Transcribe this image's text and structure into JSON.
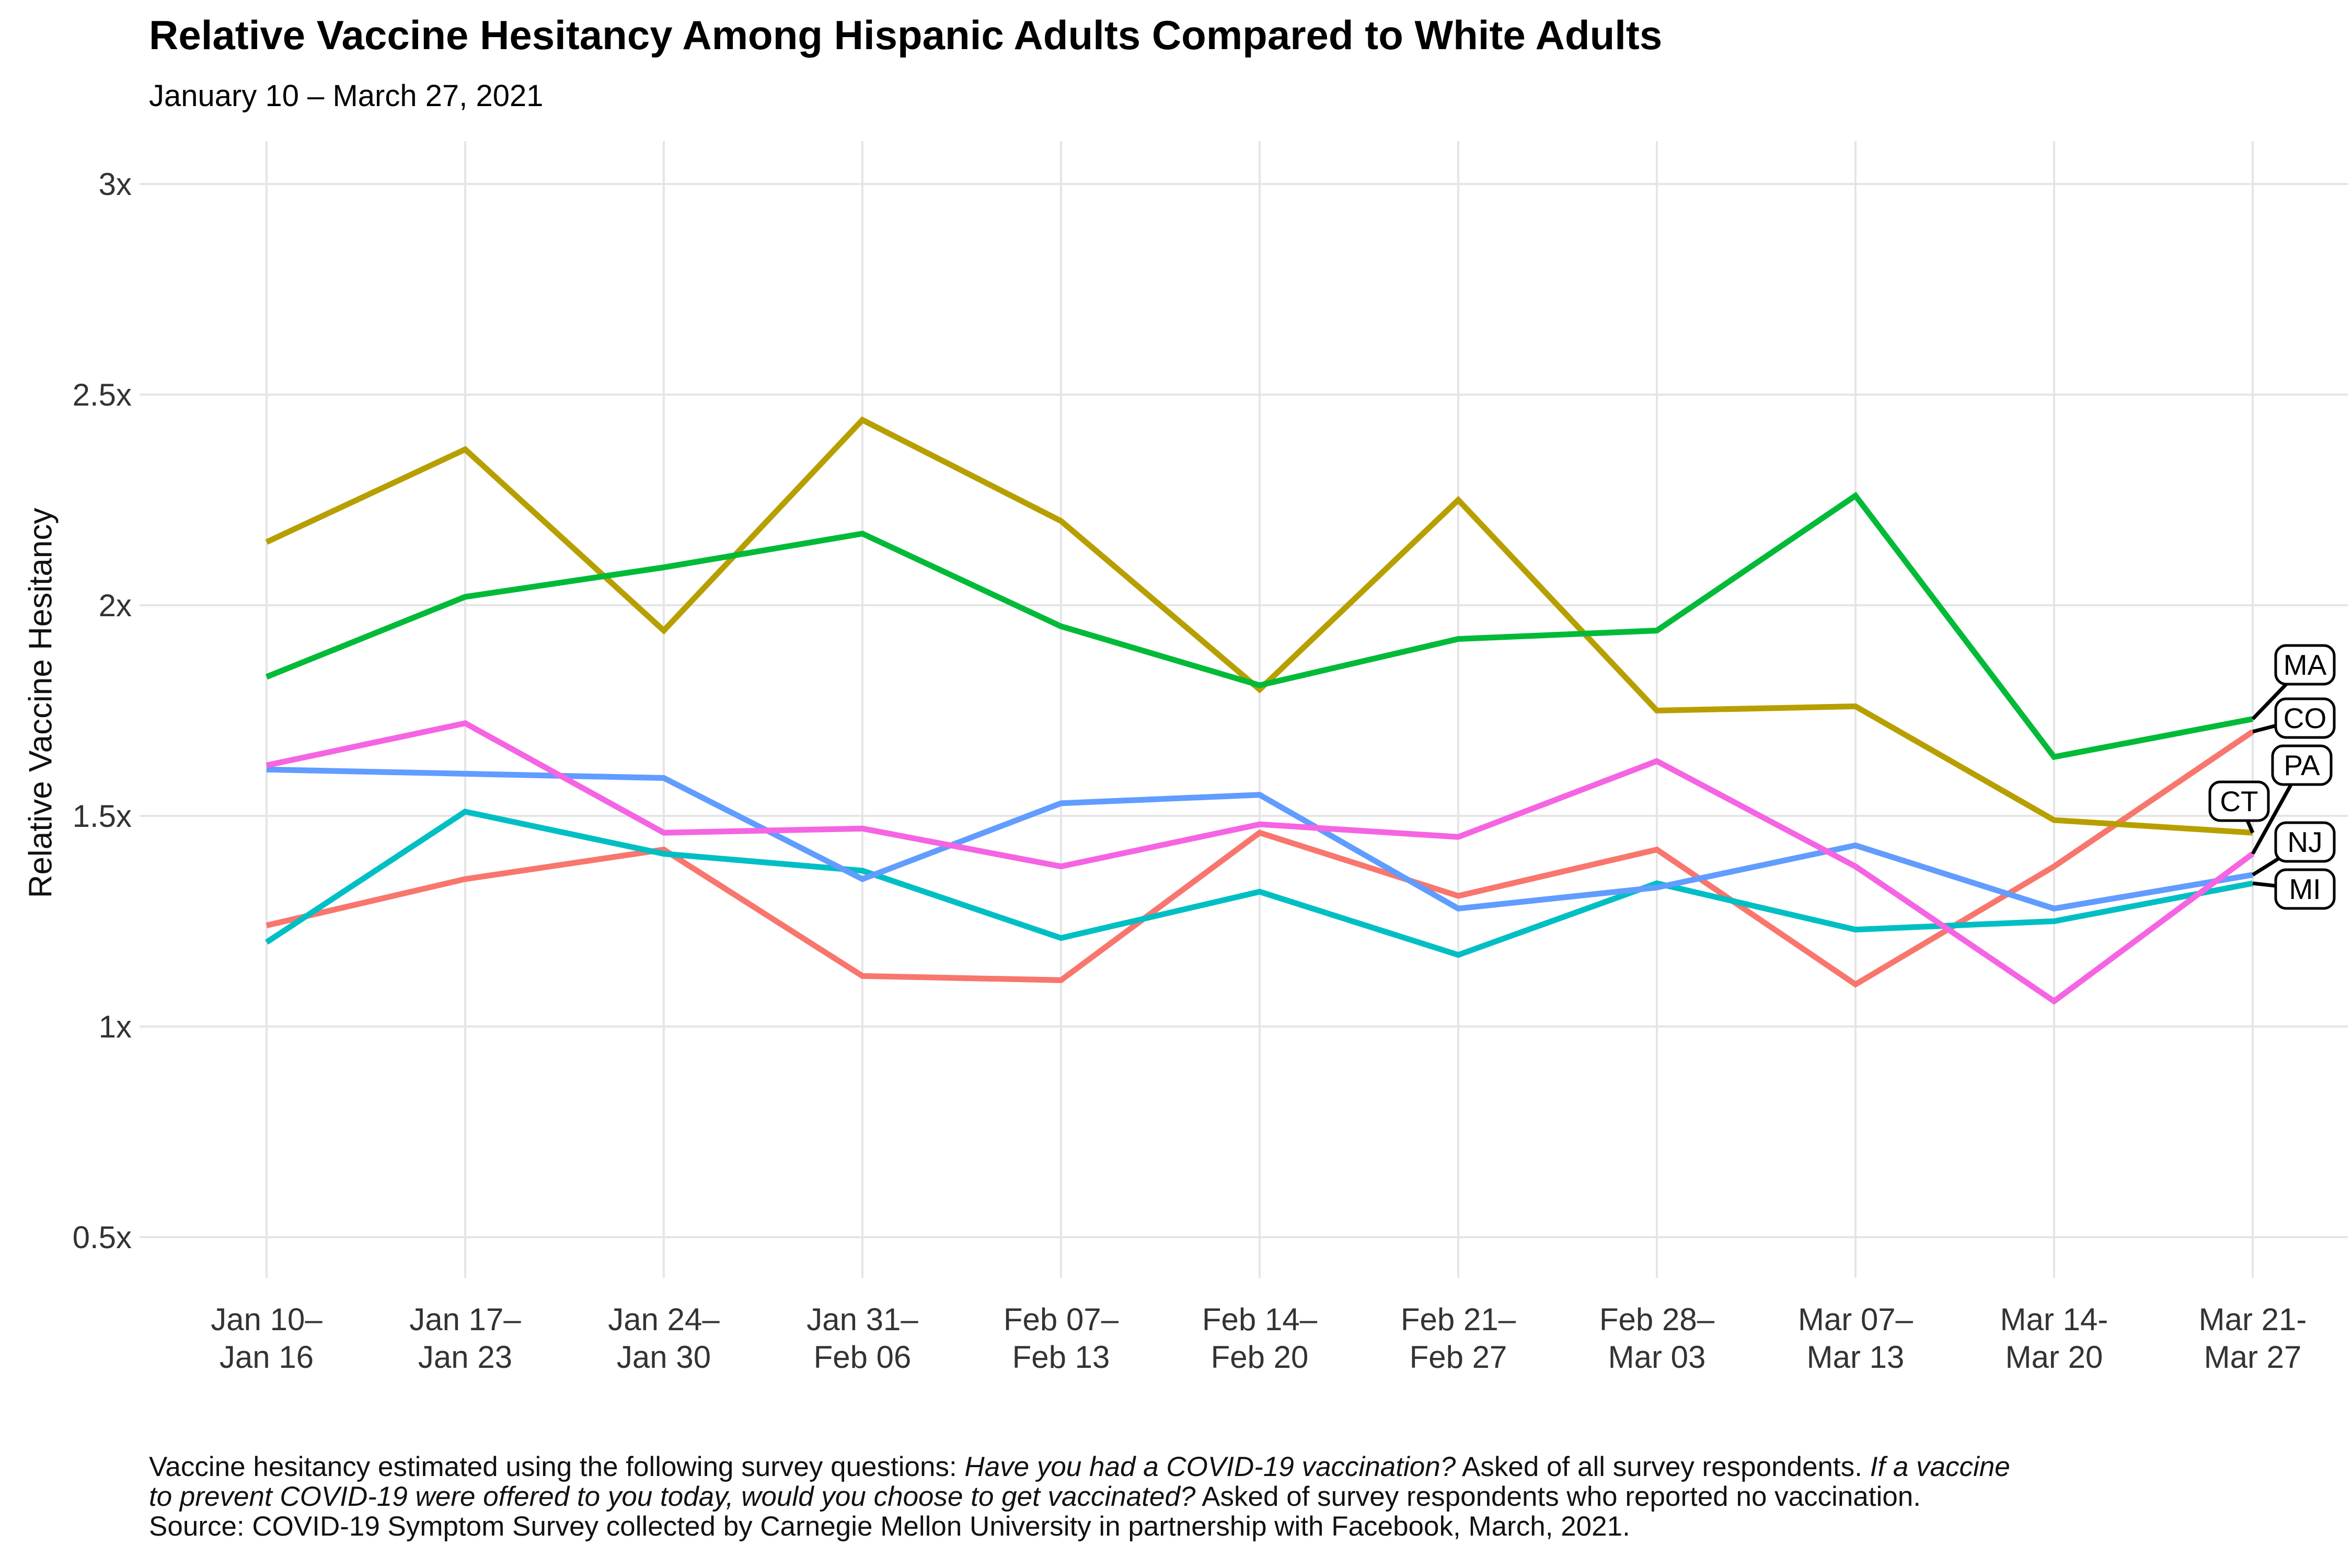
{
  "header": {
    "title": "Relative Vaccine Hesitancy Among Hispanic Adults Compared to White Adults",
    "subtitle": "January 10 – March 27, 2021"
  },
  "chart_data": {
    "type": "line",
    "title": "Relative Vaccine Hesitancy Among Hispanic Adults Compared to White Adults",
    "subtitle": "January 10 – March 27, 2021",
    "xlabel": "",
    "ylabel": "Relative Vaccine Hesitancy",
    "ylim": [
      0.4,
      3.1
    ],
    "grid": true,
    "legend_position": "direct-labels-right",
    "y_ticks": [
      {
        "value": 0.5,
        "label": "0.5x"
      },
      {
        "value": 1.0,
        "label": "1x"
      },
      {
        "value": 1.5,
        "label": "1.5x"
      },
      {
        "value": 2.0,
        "label": "2x"
      },
      {
        "value": 2.5,
        "label": "2.5x"
      },
      {
        "value": 3.0,
        "label": "3x"
      }
    ],
    "categories": [
      {
        "line1": "Jan 10–",
        "line2": "Jan 16"
      },
      {
        "line1": "Jan 17–",
        "line2": "Jan 23"
      },
      {
        "line1": "Jan 24–",
        "line2": "Jan 30"
      },
      {
        "line1": "Jan 31–",
        "line2": "Feb 06"
      },
      {
        "line1": "Feb 07–",
        "line2": "Feb 13"
      },
      {
        "line1": "Feb 14–",
        "line2": "Feb 20"
      },
      {
        "line1": "Feb 21–",
        "line2": "Feb 27"
      },
      {
        "line1": "Feb 28–",
        "line2": "Mar 03"
      },
      {
        "line1": "Mar 07–",
        "line2": "Mar 13"
      },
      {
        "line1": "Mar 14-",
        "line2": "Mar 20"
      },
      {
        "line1": "Mar 21-",
        "line2": "Mar 27"
      }
    ],
    "series": [
      {
        "id": "CO",
        "label": "CO",
        "color": "#F8766D",
        "values": [
          1.24,
          1.35,
          1.42,
          1.12,
          1.11,
          1.46,
          1.31,
          1.42,
          1.1,
          1.38,
          1.7
        ]
      },
      {
        "id": "CT",
        "label": "CT",
        "color": "#B79F00",
        "values": [
          2.15,
          2.37,
          1.94,
          2.44,
          2.2,
          1.8,
          2.25,
          1.75,
          1.76,
          1.49,
          1.46
        ]
      },
      {
        "id": "MA",
        "label": "MA",
        "color": "#00BA38",
        "values": [
          1.83,
          2.02,
          2.09,
          2.17,
          1.95,
          1.81,
          1.92,
          1.94,
          2.26,
          1.64,
          1.73
        ]
      },
      {
        "id": "MI",
        "label": "MI",
        "color": "#00BFC4",
        "values": [
          1.2,
          1.51,
          1.41,
          1.37,
          1.21,
          1.32,
          1.17,
          1.34,
          1.23,
          1.25,
          1.34
        ]
      },
      {
        "id": "NJ",
        "label": "NJ",
        "color": "#619CFF",
        "values": [
          1.61,
          1.6,
          1.59,
          1.35,
          1.53,
          1.55,
          1.28,
          1.33,
          1.43,
          1.28,
          1.36
        ]
      },
      {
        "id": "PA",
        "label": "PA",
        "color": "#F564E3",
        "values": [
          1.62,
          1.72,
          1.46,
          1.47,
          1.38,
          1.48,
          1.45,
          1.63,
          1.38,
          1.06,
          1.41
        ]
      }
    ],
    "colors": {
      "gridline": "#E5E5E5",
      "axis_text": "#333333",
      "label_box_border": "#000000",
      "label_box_fill": "#ffffff"
    }
  },
  "footer": {
    "lines": [
      [
        {
          "text": "Vaccine hesitancy estimated using the following survey questions: ",
          "italic": false
        },
        {
          "text": "Have you had a COVID-19 vaccination?",
          "italic": true
        },
        {
          "text": " Asked of all survey respondents. ",
          "italic": false
        },
        {
          "text": "If a vaccine",
          "italic": true
        }
      ],
      [
        {
          "text": "to prevent COVID-19 were offered to you today, would you choose to get vaccinated?",
          "italic": true
        },
        {
          "text": " Asked of survey respondents who reported no vaccination.",
          "italic": false
        }
      ],
      [
        {
          "text": "Source: COVID-19 Symptom Survey collected by Carnegie Mellon University in partnership with Facebook, March, 2021.",
          "italic": false
        }
      ]
    ]
  }
}
